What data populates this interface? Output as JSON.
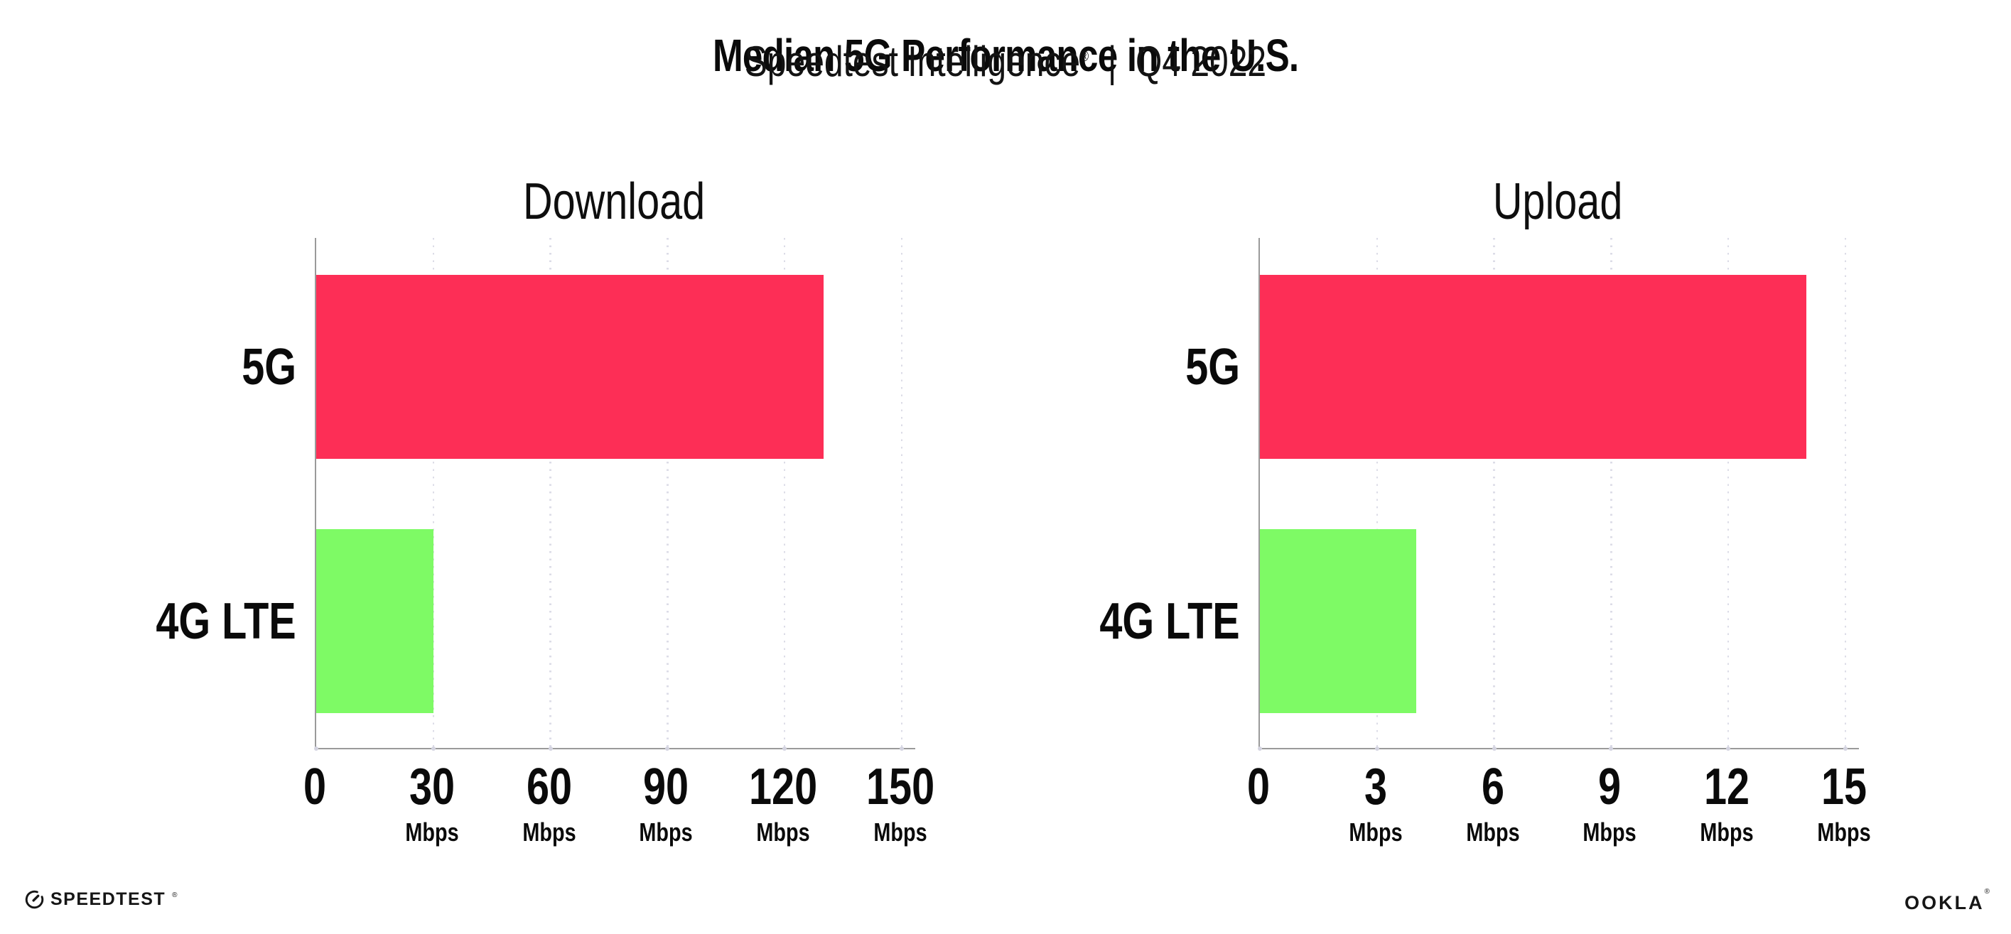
{
  "header": {
    "title": "Median 5G Performance in the U.S.",
    "subtitle_brand": "Speedtest Intelligence",
    "subtitle_reg": "®",
    "subtitle_separator": "|",
    "subtitle_period": "Q4 2022"
  },
  "chart_data": [
    {
      "type": "bar",
      "orientation": "horizontal",
      "title": "Download",
      "categories": [
        "5G",
        "4G LTE"
      ],
      "values": [
        130,
        30
      ],
      "unit": "Mbps",
      "x_ticks": [
        0,
        30,
        60,
        90,
        120,
        150
      ],
      "tick_unit_label": "Mbps",
      "xlim": [
        0,
        153
      ],
      "bar_colors": [
        "#fd2e56",
        "#7efa65"
      ],
      "grid": "dotted-vertical-gridlines",
      "legend": "none"
    },
    {
      "type": "bar",
      "orientation": "horizontal",
      "title": "Upload",
      "categories": [
        "5G",
        "4G LTE"
      ],
      "values": [
        14,
        4
      ],
      "unit": "Mbps",
      "x_ticks": [
        0,
        3,
        6,
        9,
        12,
        15
      ],
      "tick_unit_label": "Mbps",
      "xlim": [
        0,
        15.3
      ],
      "bar_colors": [
        "#fd2e56",
        "#7efa65"
      ],
      "grid": "dotted-vertical-gridlines",
      "legend": "none"
    }
  ],
  "footer": {
    "speedtest_logo_text": "SPEEDTEST",
    "speedtest_trademark": "®",
    "ookla_logo_text": "OOKLA",
    "ookla_trademark": "®"
  },
  "colors": {
    "bar_5g": "#fd2e56",
    "bar_4g_lte": "#7efa65",
    "axis": "#9a9a9a",
    "gridline": "#dcdce7",
    "text": "#0a0a0a",
    "background": "#ffffff"
  }
}
